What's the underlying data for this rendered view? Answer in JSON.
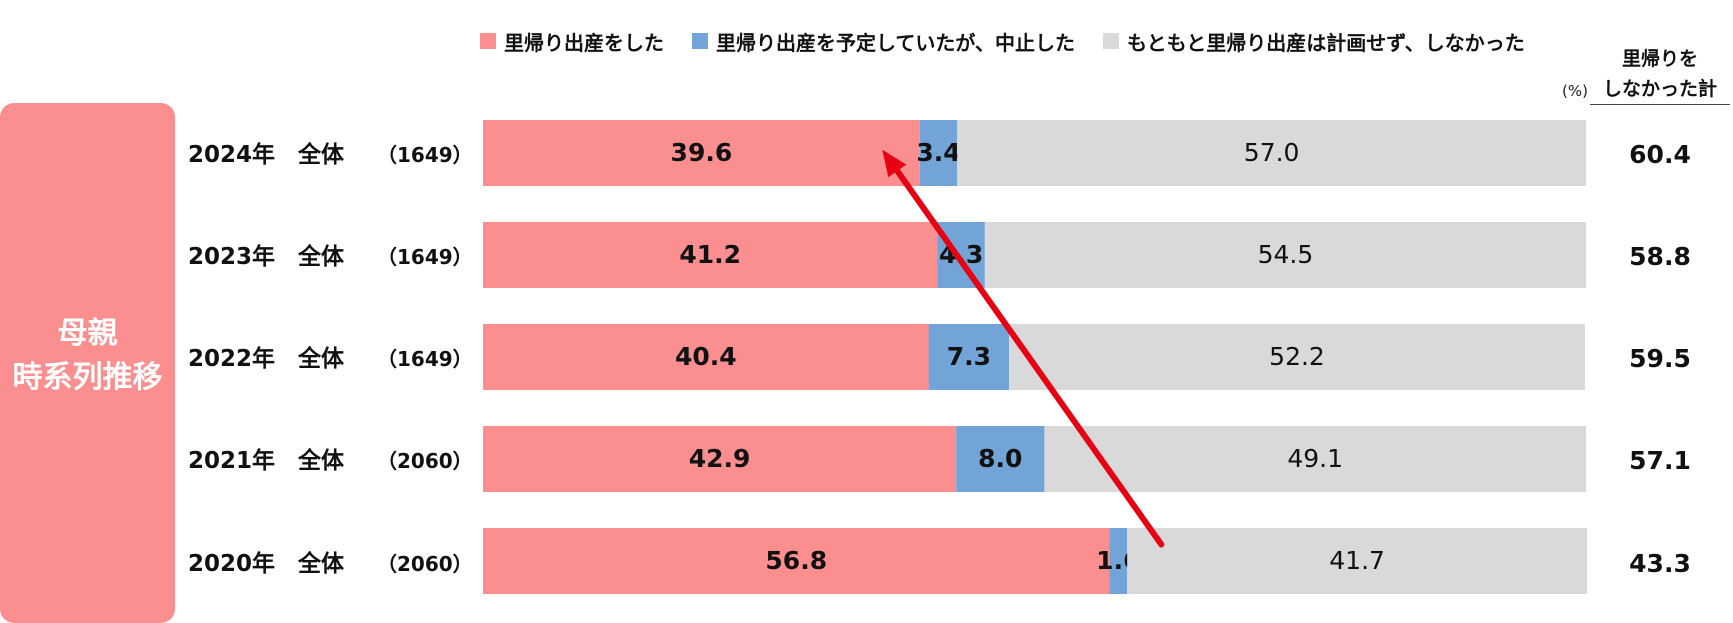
{
  "legend": [
    {
      "label": "里帰り出産をした",
      "color": "#fb8f8f"
    },
    {
      "label": "里帰り出産を予定していたが、中止した",
      "color": "#72a4d8"
    },
    {
      "label": "もともと里帰り出産は計画せず、しなかった",
      "color": "#d9d9d9"
    }
  ],
  "unit": "(%)",
  "total_header": {
    "line1": "里帰りを",
    "line2": "しなかった計"
  },
  "side_title": {
    "line1": "母親",
    "line2": "時系列推移"
  },
  "rows": [
    {
      "label": "2024年　全体",
      "n": "（1649）",
      "total": "60.4"
    },
    {
      "label": "2023年　全体",
      "n": "（1649）",
      "total": "58.8"
    },
    {
      "label": "2022年　全体",
      "n": "（1649）",
      "total": "59.5"
    },
    {
      "label": "2021年　全体",
      "n": "（2060）",
      "total": "57.1"
    },
    {
      "label": "2020年　全体",
      "n": "（2060）",
      "total": "43.3"
    }
  ],
  "chart_data": {
    "type": "bar",
    "orientation": "horizontal",
    "stacked": true,
    "categories": [
      "2024年　全体",
      "2023年　全体",
      "2022年　全体",
      "2021年　全体",
      "2020年　全体"
    ],
    "series": [
      {
        "name": "里帰り出産をした",
        "color": "#fb8f8f",
        "values": [
          39.6,
          41.2,
          40.4,
          42.9,
          56.8
        ]
      },
      {
        "name": "里帰り出産を予定していたが、中止した",
        "color": "#72a4d8",
        "values": [
          3.4,
          4.3,
          7.3,
          8.0,
          1.6
        ]
      },
      {
        "name": "もともと里帰り出産は計画せず、しなかった",
        "color": "#d9d9d9",
        "values": [
          57.0,
          54.5,
          52.2,
          49.1,
          41.7
        ]
      }
    ],
    "xlim": [
      0,
      100
    ],
    "annotation": {
      "type": "arrow",
      "color": "#e60012",
      "from_category": "2020年　全体",
      "from_value": 61.5,
      "to_category": "2024年　全体",
      "to_value": 36.2
    }
  }
}
